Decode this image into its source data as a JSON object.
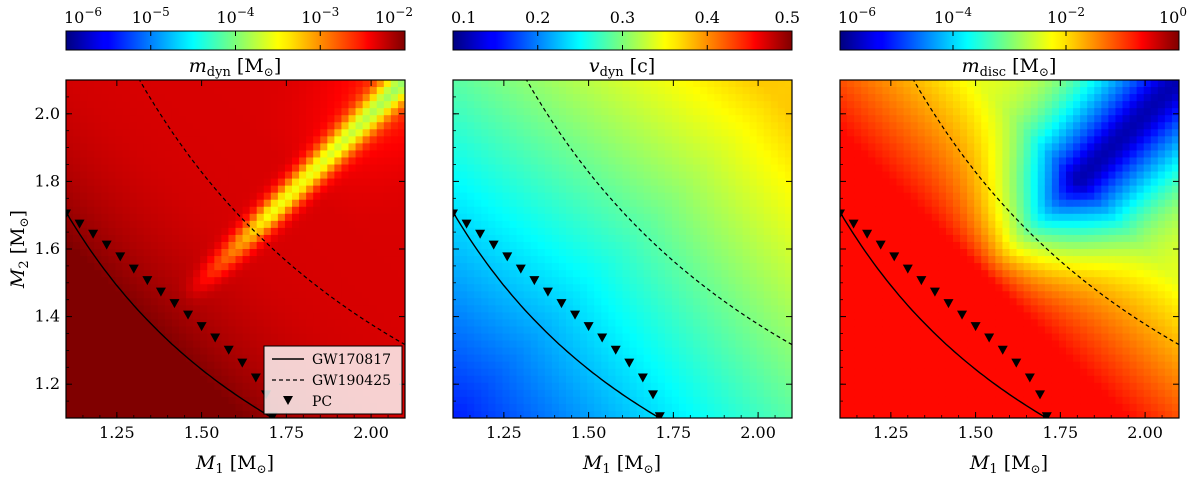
{
  "chart_data": [
    {
      "type": "heatmap",
      "title_main": "m",
      "title_sub": "dyn",
      "title_unit": "[M",
      "title_unit_sub": "⊙",
      "title_close": "]",
      "colormap": "jet",
      "colorbar": {
        "scale": "log",
        "range": [
          -6,
          -2
        ],
        "ticks": [
          {
            "v": -6,
            "base": "10",
            "exp": "−6"
          },
          {
            "v": -5,
            "base": "10",
            "exp": "−5"
          },
          {
            "v": -4,
            "base": "10",
            "exp": "−4"
          },
          {
            "v": -3,
            "base": "10",
            "exp": "−3"
          },
          {
            "v": -2,
            "base": "10",
            "exp": "−2"
          }
        ]
      },
      "xlim": [
        1.1,
        2.1
      ],
      "ylim": [
        1.1,
        2.1
      ],
      "xticks": [
        {
          "v": 1.25,
          "t": "1.25"
        },
        {
          "v": 1.5,
          "t": "1.50"
        },
        {
          "v": 1.75,
          "t": "1.75"
        },
        {
          "v": 2.0,
          "t": "2.00"
        }
      ],
      "yticks": [
        {
          "v": 1.2,
          "t": "1.2"
        },
        {
          "v": 1.4,
          "t": "1.4"
        },
        {
          "v": 1.6,
          "t": "1.6"
        },
        {
          "v": 1.8,
          "t": "1.8"
        },
        {
          "v": 2.0,
          "t": "2.0"
        }
      ],
      "xlabel": {
        "main": "M",
        "sub": "1",
        "unit": "[M",
        "unit_sub": "⊙",
        "close": "]"
      },
      "ylabel": {
        "main": "M",
        "sub": "2",
        "unit": "[M",
        "unit_sub": "⊙",
        "close": "]"
      },
      "field": {
        "baseline": -2.35,
        "lower_left_boost": 1.0,
        "diagonal_dip": 1.2
      },
      "legend": {
        "entries": [
          {
            "style": "solid",
            "label": "GW170817"
          },
          {
            "style": "dashed",
            "label": "GW190425"
          },
          {
            "style": "marker",
            "label": "PC"
          }
        ]
      }
    },
    {
      "type": "heatmap",
      "title_main": "v",
      "title_sub": "dyn",
      "title_unit": "[c",
      "title_unit_sub": "",
      "title_close": "]",
      "colormap": "jet",
      "colorbar": {
        "scale": "linear",
        "range": [
          0.1,
          0.5
        ],
        "ticks": [
          {
            "v": 0.1,
            "t": "0.1"
          },
          {
            "v": 0.2,
            "t": "0.2"
          },
          {
            "v": 0.3,
            "t": "0.3"
          },
          {
            "v": 0.4,
            "t": "0.4"
          },
          {
            "v": 0.5,
            "t": "0.5"
          }
        ]
      },
      "xlim": [
        1.1,
        2.1
      ],
      "ylim": [
        1.1,
        2.1
      ],
      "xticks": [
        {
          "v": 1.25,
          "t": "1.25"
        },
        {
          "v": 1.5,
          "t": "1.50"
        },
        {
          "v": 1.75,
          "t": "1.75"
        },
        {
          "v": 2.0,
          "t": "2.00"
        }
      ],
      "xlabel": {
        "main": "M",
        "sub": "1",
        "unit": "[M",
        "unit_sub": "⊙",
        "close": "]"
      },
      "field": {
        "min": 0.16,
        "max": 0.37
      }
    },
    {
      "type": "heatmap",
      "title_main": "m",
      "title_sub": "disc",
      "title_unit": "[M",
      "title_unit_sub": "⊙",
      "title_close": "]",
      "colormap": "jet",
      "colorbar": {
        "scale": "log",
        "range": [
          -6,
          0
        ],
        "ticks": [
          {
            "v": -6,
            "base": "10",
            "exp": "−6"
          },
          {
            "v": -4,
            "base": "10",
            "exp": "−4"
          },
          {
            "v": -2,
            "base": "10",
            "exp": "−2"
          },
          {
            "v": 0,
            "base": "10",
            "exp": "0"
          }
        ]
      },
      "xlim": [
        1.1,
        2.1
      ],
      "ylim": [
        1.1,
        2.1
      ],
      "xticks": [
        {
          "v": 1.25,
          "t": "1.25"
        },
        {
          "v": 1.5,
          "t": "1.50"
        },
        {
          "v": 1.75,
          "t": "1.75"
        },
        {
          "v": 2.0,
          "t": "2.00"
        }
      ],
      "xlabel": {
        "main": "M",
        "sub": "1",
        "unit": "[M",
        "unit_sub": "⊙",
        "close": "]"
      },
      "field": {
        "high": -0.8,
        "low": -5.2
      }
    }
  ],
  "curves": {
    "gw170817_chirp": 1.188,
    "gw190425_chirp": 1.44,
    "pc_points": [
      [
        1.1,
        1.705
      ],
      [
        1.14,
        1.675
      ],
      [
        1.18,
        1.645
      ],
      [
        1.22,
        1.613
      ],
      [
        1.26,
        1.578
      ],
      [
        1.3,
        1.542
      ],
      [
        1.34,
        1.508
      ],
      [
        1.38,
        1.474
      ],
      [
        1.42,
        1.44
      ],
      [
        1.46,
        1.406
      ],
      [
        1.5,
        1.372
      ],
      [
        1.54,
        1.338
      ],
      [
        1.58,
        1.302
      ],
      [
        1.62,
        1.264
      ],
      [
        1.66,
        1.22
      ],
      [
        1.69,
        1.17
      ],
      [
        1.71,
        1.105
      ]
    ]
  }
}
